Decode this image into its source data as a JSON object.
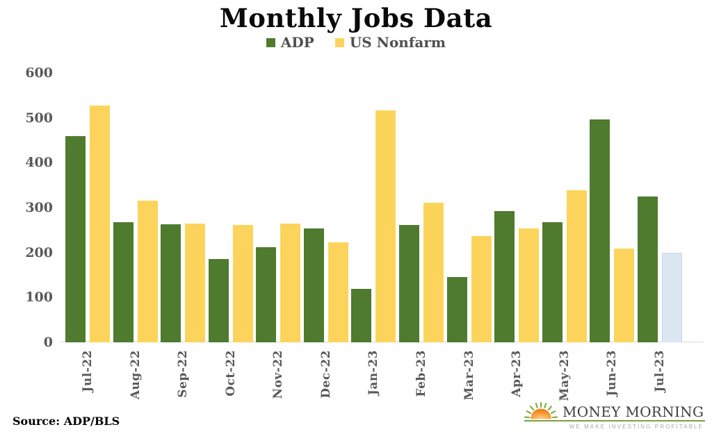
{
  "title": "Monthly Jobs Data",
  "legend": [
    {
      "label": "ADP",
      "color": "#4e7b2e"
    },
    {
      "label": "US Nonfarm",
      "color": "#fcd45c"
    }
  ],
  "source": "Source: ADP/BLS",
  "logo": {
    "name": "MONEY MORNING",
    "tagline": "WE MAKE INVESTING PROFITABLE",
    "accent_green": "#7ba23b",
    "sun_orange": "#f59a31"
  },
  "chart_data": {
    "type": "bar",
    "title": "Monthly Jobs Data",
    "categories": [
      "Jul-22",
      "Aug-22",
      "Sep-22",
      "Oct-22",
      "Nov-22",
      "Dec-22",
      "Jan-23",
      "Feb-23",
      "Mar-23",
      "Apr-23",
      "May-23",
      "Jun-23",
      "Jul-23"
    ],
    "series": [
      {
        "name": "ADP",
        "color": "#4e7b2e",
        "values": [
          460,
          268,
          263,
          185,
          212,
          253,
          119,
          261,
          145,
          293,
          267,
          497,
          324
        ]
      },
      {
        "name": "US Nonfarm",
        "color": "#fcd45c",
        "values": [
          528,
          315,
          265,
          262,
          265,
          223,
          517,
          311,
          236,
          253,
          339,
          209,
          200
        ]
      }
    ],
    "forecast": {
      "series": "US Nonfarm",
      "category": "Jul-23",
      "color": "#dce6f3",
      "border": "#c9d7ea"
    },
    "xlabel": "",
    "ylabel": "",
    "ylim": [
      0,
      600
    ],
    "yticks": [
      0,
      100,
      200,
      300,
      400,
      500,
      600
    ],
    "grid": false,
    "legend_position": "top-center",
    "x_tick_rotation": -90
  }
}
